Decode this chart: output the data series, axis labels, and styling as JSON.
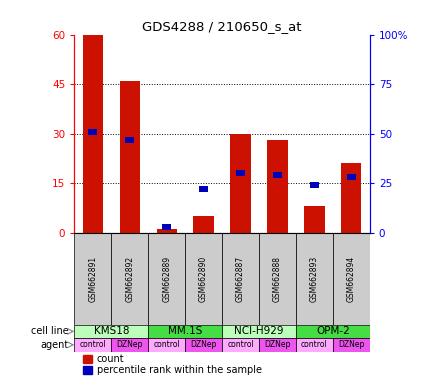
{
  "title": "GDS4288 / 210650_s_at",
  "samples": [
    "GSM662891",
    "GSM662892",
    "GSM662889",
    "GSM662890",
    "GSM662887",
    "GSM662888",
    "GSM662893",
    "GSM662894"
  ],
  "count_values": [
    60,
    46,
    1,
    5,
    30,
    28,
    8,
    21
  ],
  "percentile_values": [
    51,
    47,
    3,
    22,
    30,
    29,
    24,
    28
  ],
  "cell_lines": [
    {
      "name": "KMS18",
      "span": [
        0,
        2
      ],
      "color": "#bbffbb"
    },
    {
      "name": "MM.1S",
      "span": [
        2,
        4
      ],
      "color": "#44dd44"
    },
    {
      "name": "NCI-H929",
      "span": [
        4,
        6
      ],
      "color": "#bbffbb"
    },
    {
      "name": "OPM-2",
      "span": [
        6,
        8
      ],
      "color": "#44dd44"
    }
  ],
  "agents": [
    "control",
    "DZNep",
    "control",
    "DZNep",
    "control",
    "DZNep",
    "control",
    "DZNep"
  ],
  "agent_color_control": "#ffaaff",
  "agent_color_DZNep": "#ee55ee",
  "bar_color": "#cc1100",
  "percentile_color": "#0000bb",
  "left_ylim": [
    0,
    60
  ],
  "right_ylim": [
    0,
    100
  ],
  "left_yticks": [
    0,
    15,
    30,
    45,
    60
  ],
  "right_yticks": [
    0,
    25,
    50,
    75,
    100
  ],
  "right_yticklabels": [
    "0",
    "25",
    "50",
    "75",
    "100%"
  ],
  "grid_values": [
    15,
    30,
    45
  ],
  "background_color": "#ffffff",
  "sample_box_color": "#cccccc"
}
